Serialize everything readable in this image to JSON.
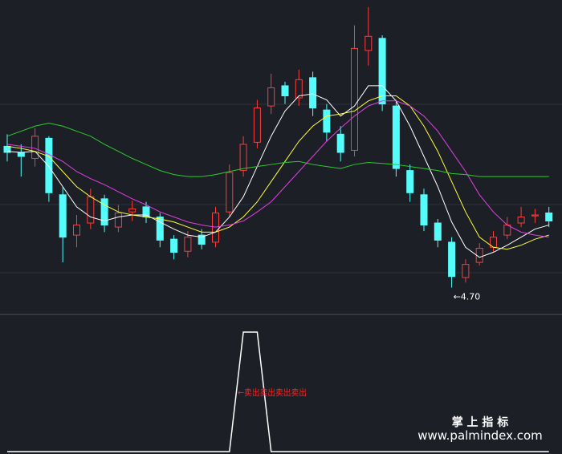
{
  "chart_data": [
    {
      "type": "candlestick",
      "open": [
        6.1,
        6.04,
        5.98,
        6.18,
        5.62,
        5.22,
        5.34,
        5.58,
        5.3,
        5.45,
        5.5,
        5.4,
        5.18,
        5.06,
        5.22,
        5.15,
        5.45,
        5.86,
        6.14,
        6.5,
        6.7,
        6.58,
        6.78,
        6.46,
        6.22,
        6.06,
        7.05,
        7.17,
        6.5,
        5.86,
        5.62,
        5.34,
        5.15,
        4.8,
        4.95,
        5.1,
        5.22,
        5.34,
        5.41,
        5.44
      ],
      "high": [
        6.22,
        6.12,
        6.28,
        6.2,
        5.7,
        5.42,
        5.68,
        5.62,
        5.52,
        5.56,
        5.55,
        5.44,
        5.22,
        5.26,
        5.28,
        5.5,
        5.92,
        6.2,
        6.56,
        6.82,
        6.74,
        6.86,
        6.84,
        6.52,
        6.3,
        7.3,
        7.48,
        7.2,
        6.56,
        5.92,
        5.68,
        5.38,
        5.2,
        4.98,
        5.14,
        5.26,
        5.4,
        5.5,
        5.48,
        5.5
      ],
      "low": [
        5.95,
        5.8,
        5.9,
        5.55,
        4.95,
        5.1,
        5.28,
        5.25,
        5.25,
        5.36,
        5.34,
        5.1,
        4.98,
        5.0,
        5.08,
        5.1,
        5.4,
        5.8,
        6.08,
        6.42,
        6.52,
        6.5,
        6.4,
        6.15,
        5.95,
        6.0,
        6.9,
        6.45,
        5.8,
        5.55,
        5.26,
        5.1,
        4.7,
        4.75,
        4.92,
        5.05,
        5.18,
        5.3,
        5.34,
        5.3
      ],
      "close": [
        6.04,
        6.0,
        6.2,
        5.64,
        5.2,
        5.32,
        5.6,
        5.32,
        5.44,
        5.48,
        5.4,
        5.17,
        5.05,
        5.2,
        5.13,
        5.44,
        5.84,
        6.12,
        6.48,
        6.68,
        6.6,
        6.76,
        6.48,
        6.24,
        6.04,
        7.07,
        7.19,
        6.52,
        5.88,
        5.64,
        5.32,
        5.17,
        4.81,
        4.93,
        5.09,
        5.2,
        5.32,
        5.4,
        5.42,
        5.36
      ],
      "up_color": "#ff3b3b",
      "down_color": "#54fcfc",
      "ylim": [
        4.45,
        7.55
      ],
      "series": [
        {
          "color": "#ffffff",
          "values": [
            6.05,
            6.04,
            6.05,
            5.9,
            5.7,
            5.5,
            5.4,
            5.36,
            5.4,
            5.42,
            5.42,
            5.35,
            5.28,
            5.22,
            5.2,
            5.25,
            5.4,
            5.6,
            5.9,
            6.2,
            6.45,
            6.6,
            6.62,
            6.56,
            6.4,
            6.5,
            6.7,
            6.7,
            6.55,
            6.3,
            6.0,
            5.7,
            5.35,
            5.1,
            5.0,
            5.05,
            5.12,
            5.2,
            5.28,
            5.32
          ]
        },
        {
          "color": "#ffff3c",
          "values": [
            6.1,
            6.08,
            6.05,
            6.0,
            5.85,
            5.7,
            5.6,
            5.52,
            5.45,
            5.42,
            5.4,
            5.38,
            5.35,
            5.3,
            5.25,
            5.25,
            5.3,
            5.4,
            5.55,
            5.75,
            5.95,
            6.15,
            6.3,
            6.4,
            6.42,
            6.45,
            6.55,
            6.6,
            6.6,
            6.5,
            6.3,
            6.05,
            5.75,
            5.45,
            5.2,
            5.1,
            5.08,
            5.12,
            5.18,
            5.22
          ]
        },
        {
          "color": "#e040e0",
          "values": [
            6.12,
            6.1,
            6.08,
            6.02,
            5.95,
            5.85,
            5.78,
            5.72,
            5.65,
            5.58,
            5.52,
            5.45,
            5.4,
            5.35,
            5.32,
            5.3,
            5.32,
            5.36,
            5.45,
            5.55,
            5.7,
            5.85,
            6.0,
            6.15,
            6.28,
            6.4,
            6.5,
            6.55,
            6.55,
            6.5,
            6.4,
            6.25,
            6.05,
            5.85,
            5.62,
            5.45,
            5.32,
            5.25,
            5.22,
            5.2
          ]
        },
        {
          "color": "#2ecc2e",
          "values": [
            6.2,
            6.25,
            6.3,
            6.33,
            6.3,
            6.25,
            6.2,
            6.12,
            6.05,
            5.98,
            5.92,
            5.86,
            5.82,
            5.8,
            5.8,
            5.82,
            5.85,
            5.88,
            5.9,
            5.92,
            5.94,
            5.95,
            5.92,
            5.9,
            5.88,
            5.92,
            5.94,
            5.93,
            5.92,
            5.9,
            5.88,
            5.86,
            5.83,
            5.82,
            5.8,
            5.8,
            5.8,
            5.8,
            5.8,
            5.8
          ]
        }
      ],
      "low_marker": "←4.70"
    },
    {
      "type": "line",
      "color": "#ffffff",
      "ylim": [
        0,
        1
      ],
      "values": [
        0,
        0,
        0,
        0,
        0,
        0,
        0,
        0,
        0,
        0,
        0,
        0,
        0,
        0,
        0,
        0,
        0,
        1,
        1,
        0,
        0,
        0,
        0,
        0,
        0,
        0,
        0,
        0,
        0,
        0,
        0,
        0,
        0,
        0,
        0,
        0,
        0,
        0,
        0,
        0
      ],
      "signal_text": "←卖出卖出卖出卖出"
    }
  ],
  "watermark": {
    "title": "掌 上 指 标",
    "url": "www.palmindex.com"
  }
}
